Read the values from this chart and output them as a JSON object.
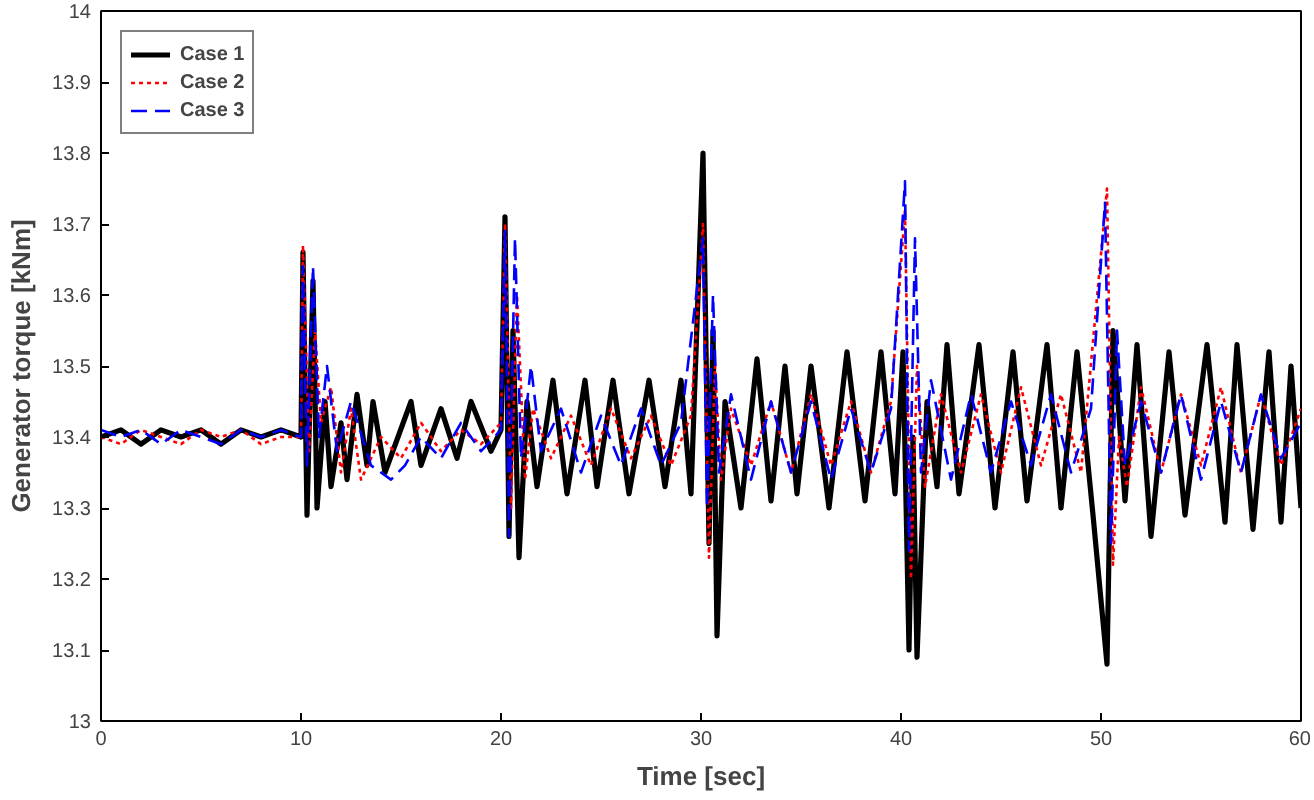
{
  "chart_data": {
    "type": "line",
    "xlabel": "Time [sec]",
    "ylabel": "Generator torque [kNm]",
    "xlim": [
      0,
      60
    ],
    "ylim": [
      13,
      14
    ],
    "xticks": [
      0,
      10,
      20,
      30,
      40,
      50,
      60
    ],
    "yticks": [
      13,
      13.1,
      13.2,
      13.3,
      13.4,
      13.5,
      13.6,
      13.7,
      13.8,
      13.9,
      14
    ],
    "grid": false,
    "legend": "top left",
    "series": [
      {
        "name": "Case 1",
        "color": "#000000",
        "line_style": "solid",
        "x": [
          0,
          1,
          2,
          3,
          4,
          5,
          6,
          7,
          8,
          9,
          10,
          10.1,
          10.3,
          10.6,
          10.8,
          11.2,
          11.5,
          12,
          12.3,
          12.8,
          13.3,
          13.6,
          14.2,
          15.5,
          16,
          17,
          17.8,
          18.5,
          19.5,
          20,
          20.2,
          20.4,
          20.6,
          20.9,
          21.3,
          21.8,
          22.6,
          23.3,
          24.2,
          24.8,
          25.6,
          26.4,
          27.4,
          28.2,
          29,
          29.5,
          30.1,
          30.4,
          30.6,
          30.8,
          31.2,
          32,
          32.8,
          33.5,
          34.2,
          34.8,
          35.5,
          36.4,
          37.3,
          38.2,
          39,
          39.7,
          40.1,
          40.4,
          40.6,
          40.8,
          41.3,
          41.8,
          42.3,
          42.9,
          43.9,
          44.7,
          45.6,
          46.3,
          47.3,
          48,
          48.8,
          49.6,
          50.3,
          50.6,
          51.2,
          51.8,
          52.5,
          53.4,
          54.2,
          55.3,
          56.2,
          56.8,
          57.6,
          58.4,
          59,
          59.5,
          60
        ],
        "values": [
          13.4,
          13.41,
          13.39,
          13.41,
          13.4,
          13.41,
          13.39,
          13.41,
          13.4,
          13.41,
          13.4,
          13.66,
          13.29,
          13.62,
          13.3,
          13.45,
          13.33,
          13.42,
          13.34,
          13.46,
          13.36,
          13.45,
          13.35,
          13.45,
          13.36,
          13.44,
          13.37,
          13.45,
          13.38,
          13.41,
          13.71,
          13.26,
          13.55,
          13.23,
          13.45,
          13.33,
          13.48,
          13.32,
          13.48,
          13.33,
          13.48,
          13.32,
          13.48,
          13.33,
          13.48,
          13.32,
          13.8,
          13.25,
          13.55,
          13.12,
          13.45,
          13.3,
          13.51,
          13.31,
          13.5,
          13.32,
          13.5,
          13.3,
          13.52,
          13.31,
          13.52,
          13.32,
          13.52,
          13.1,
          13.4,
          13.09,
          13.45,
          13.33,
          13.53,
          13.32,
          13.53,
          13.3,
          13.52,
          13.31,
          13.53,
          13.3,
          13.52,
          13.29,
          13.08,
          13.55,
          13.31,
          13.53,
          13.26,
          13.52,
          13.29,
          13.53,
          13.28,
          13.53,
          13.27,
          13.52,
          13.28,
          13.5,
          13.3
        ]
      },
      {
        "name": "Case 2",
        "color": "#ff0000",
        "line_style": "dotted",
        "x": [
          0,
          1,
          2,
          3,
          4,
          5,
          6,
          7,
          8,
          9,
          10,
          10.1,
          10.4,
          10.7,
          11,
          11.5,
          12,
          12.5,
          13,
          14,
          15,
          16,
          17,
          18,
          19,
          20,
          20.2,
          20.5,
          20.8,
          21.2,
          21.6,
          22.5,
          23.5,
          24.5,
          25.5,
          26.5,
          27.5,
          28.5,
          29.5,
          30.1,
          30.4,
          30.7,
          31,
          31.5,
          32.5,
          33.5,
          34.5,
          35.5,
          36.5,
          37.5,
          38.5,
          39.5,
          40.2,
          40.5,
          40.8,
          41.2,
          42,
          43,
          44,
          45,
          46,
          47,
          48,
          49,
          50.3,
          50.6,
          50.9,
          51.3,
          52,
          53,
          54,
          55,
          56,
          57,
          58,
          59,
          60
        ],
        "values": [
          13.4,
          13.39,
          13.41,
          13.4,
          13.39,
          13.41,
          13.4,
          13.41,
          13.39,
          13.4,
          13.4,
          13.67,
          13.38,
          13.55,
          13.42,
          13.47,
          13.35,
          13.44,
          13.34,
          13.4,
          13.37,
          13.42,
          13.38,
          13.41,
          13.39,
          13.42,
          13.7,
          13.3,
          13.6,
          13.34,
          13.44,
          13.37,
          13.43,
          13.36,
          13.44,
          13.37,
          13.43,
          13.36,
          13.43,
          13.7,
          13.23,
          13.5,
          13.34,
          13.44,
          13.36,
          13.45,
          13.35,
          13.46,
          13.36,
          13.45,
          13.35,
          13.45,
          13.72,
          13.2,
          13.5,
          13.33,
          13.46,
          13.35,
          13.46,
          13.35,
          13.47,
          13.36,
          13.46,
          13.35,
          13.75,
          13.22,
          13.4,
          13.33,
          13.47,
          13.35,
          13.46,
          13.36,
          13.47,
          13.35,
          13.46,
          13.36,
          13.44
        ]
      },
      {
        "name": "Case 3",
        "color": "#0000ff",
        "line_style": "dashed",
        "x": [
          0,
          1,
          2,
          3,
          4,
          5,
          6,
          7,
          8,
          9,
          10,
          10.1,
          10.3,
          10.6,
          10.9,
          11.3,
          11.8,
          12.5,
          13.5,
          14.5,
          15.2,
          16,
          17,
          18,
          19,
          20,
          20.2,
          20.4,
          20.7,
          21,
          21.5,
          22,
          23,
          24,
          25,
          26,
          27,
          28,
          29,
          30.1,
          30.3,
          30.6,
          30.9,
          31.5,
          32.5,
          33.5,
          34.5,
          35.5,
          36.5,
          37.5,
          38.5,
          39.5,
          40.2,
          40.4,
          40.7,
          41,
          41.5,
          42.5,
          43.5,
          44.5,
          45.5,
          46.5,
          47.5,
          48.5,
          49.5,
          50.2,
          50.5,
          50.8,
          51.2,
          52,
          53,
          54,
          55,
          56,
          57,
          58,
          59,
          60
        ],
        "values": [
          13.41,
          13.4,
          13.41,
          13.39,
          13.41,
          13.4,
          13.39,
          13.41,
          13.4,
          13.41,
          13.4,
          13.64,
          13.36,
          13.64,
          13.4,
          13.5,
          13.38,
          13.45,
          13.36,
          13.34,
          13.36,
          13.4,
          13.37,
          13.42,
          13.38,
          13.41,
          13.69,
          13.26,
          13.68,
          13.37,
          13.5,
          13.38,
          13.44,
          13.35,
          13.43,
          13.36,
          13.44,
          13.36,
          13.42,
          13.68,
          13.3,
          13.6,
          13.35,
          13.46,
          13.34,
          13.45,
          13.35,
          13.45,
          13.34,
          13.44,
          13.35,
          13.44,
          13.76,
          13.24,
          13.68,
          13.35,
          13.48,
          13.34,
          13.46,
          13.35,
          13.45,
          13.36,
          13.46,
          13.35,
          13.44,
          13.73,
          13.25,
          13.55,
          13.36,
          13.45,
          13.35,
          13.46,
          13.34,
          13.45,
          13.35,
          13.46,
          13.37,
          13.42
        ]
      }
    ]
  }
}
